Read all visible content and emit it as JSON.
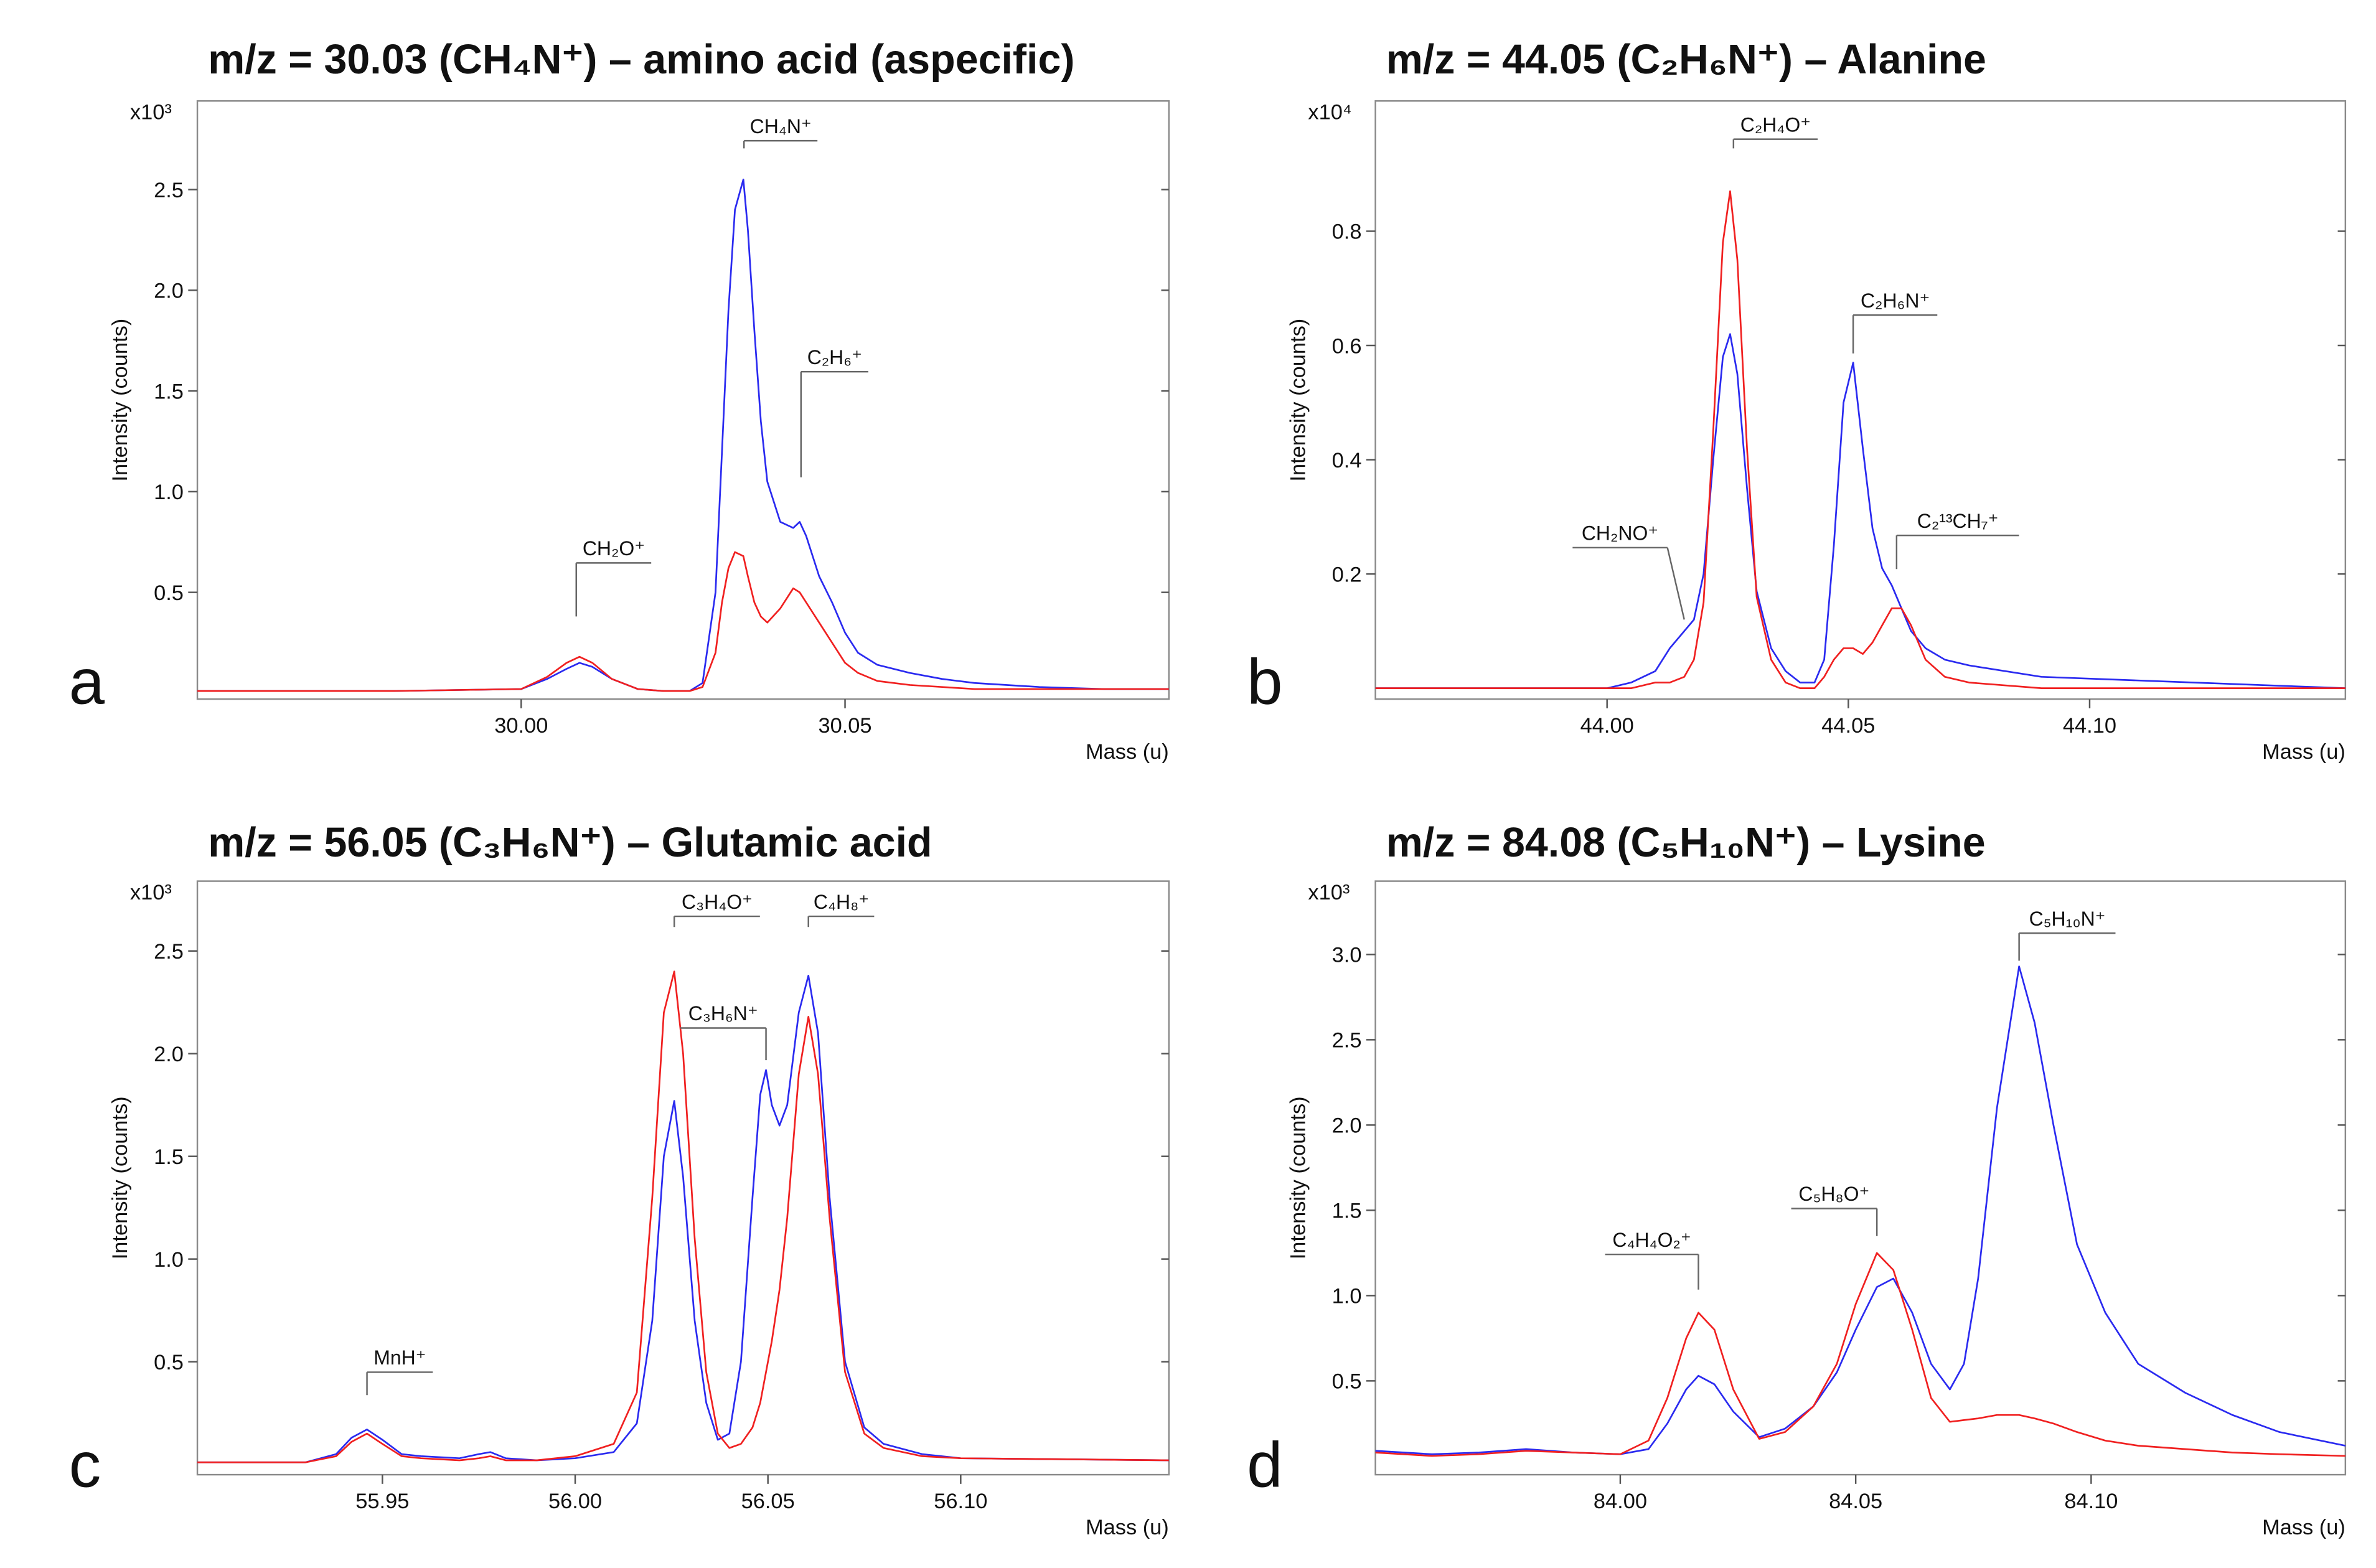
{
  "chart_data": [
    {
      "type": "line",
      "title": "m/z = 30.03 (CH₄N⁺) – amino acid (aspecific)",
      "panel_label": "a",
      "y_multiplier": "x10³",
      "xlabel": "Mass (u)",
      "ylabel": "Intensity (counts)",
      "xlim": [
        29.95,
        30.1
      ],
      "ylim": [
        -0.03,
        2.94
      ],
      "xticks": [
        {
          "value": 30,
          "label": "30.00"
        },
        30.05
      ],
      "yticks": [
        0.5,
        {
          "value": 1,
          "label": "1.0"
        },
        1.5,
        {
          "value": 2,
          "label": "2.0"
        },
        2.5
      ],
      "x": [
        29.95,
        29.98,
        30.0,
        30.004,
        30.007,
        30.009,
        30.011,
        30.014,
        30.018,
        30.022,
        30.026,
        30.028,
        30.03,
        30.031,
        30.032,
        30.033,
        30.0343,
        30.035,
        30.036,
        30.037,
        30.038,
        30.04,
        30.042,
        30.043,
        30.044,
        30.046,
        30.048,
        30.05,
        30.052,
        30.055,
        30.06,
        30.065,
        30.07,
        30.08,
        30.09,
        30.1
      ],
      "series": [
        {
          "color": "#2a2af0",
          "values": [
            0.01,
            0.01,
            0.02,
            0.07,
            0.12,
            0.15,
            0.13,
            0.07,
            0.02,
            0.01,
            0.01,
            0.05,
            0.5,
            1.2,
            1.9,
            2.4,
            2.55,
            2.3,
            1.8,
            1.35,
            1.05,
            0.85,
            0.82,
            0.85,
            0.78,
            0.58,
            0.45,
            0.3,
            0.2,
            0.14,
            0.1,
            0.07,
            0.05,
            0.03,
            0.02,
            0.02
          ]
        },
        {
          "color": "#f02020",
          "values": [
            0.01,
            0.01,
            0.02,
            0.08,
            0.15,
            0.18,
            0.15,
            0.07,
            0.02,
            0.01,
            0.01,
            0.03,
            0.2,
            0.45,
            0.62,
            0.7,
            0.68,
            0.58,
            0.45,
            0.38,
            0.35,
            0.42,
            0.52,
            0.5,
            0.45,
            0.35,
            0.25,
            0.15,
            0.1,
            0.06,
            0.04,
            0.03,
            0.02,
            0.02,
            0.02,
            0.02
          ]
        }
      ],
      "annotations": [
        {
          "label": "CH₂O⁺",
          "x": 30.0085
        },
        {
          "label": "CH₄N⁺",
          "x": 30.0344
        },
        {
          "label": "C₂H₆⁺",
          "x": 30.0432
        }
      ]
    },
    {
      "type": "line",
      "title": "m/z = 44.05 (C₂H₆N⁺) – Alanine",
      "panel_label": "b",
      "y_multiplier": "x10⁴",
      "xlabel": "Mass (u)",
      "ylabel": "Intensity (counts)",
      "xlim": [
        43.952,
        44.153
      ],
      "ylim": [
        -0.019,
        1.028
      ],
      "xticks": [
        {
          "value": 44,
          "label": "44.00"
        },
        44.05,
        {
          "value": 44.1,
          "label": "44.10"
        }
      ],
      "yticks": [
        0.2,
        0.4,
        0.6,
        0.8
      ],
      "x": [
        43.952,
        44.0,
        44.005,
        44.01,
        44.013,
        44.016,
        44.018,
        44.02,
        44.022,
        44.024,
        44.0255,
        44.027,
        44.029,
        44.031,
        44.034,
        44.037,
        44.04,
        44.043,
        44.045,
        44.047,
        44.049,
        44.051,
        44.053,
        44.055,
        44.057,
        44.059,
        44.061,
        44.063,
        44.066,
        44.07,
        44.075,
        44.09,
        44.153
      ],
      "series": [
        {
          "color": "#2a2af0",
          "values": [
            0,
            0,
            0.01,
            0.03,
            0.07,
            0.1,
            0.12,
            0.2,
            0.4,
            0.58,
            0.62,
            0.55,
            0.35,
            0.17,
            0.07,
            0.03,
            0.01,
            0.01,
            0.05,
            0.25,
            0.5,
            0.57,
            0.42,
            0.28,
            0.21,
            0.18,
            0.14,
            0.1,
            0.07,
            0.05,
            0.04,
            0.02,
            0
          ]
        },
        {
          "color": "#f02020",
          "values": [
            0,
            0,
            0,
            0.01,
            0.01,
            0.02,
            0.05,
            0.15,
            0.45,
            0.78,
            0.87,
            0.75,
            0.42,
            0.16,
            0.05,
            0.01,
            0,
            0,
            0.02,
            0.05,
            0.07,
            0.07,
            0.06,
            0.08,
            0.11,
            0.14,
            0.14,
            0.11,
            0.05,
            0.02,
            0.01,
            0,
            0
          ]
        }
      ],
      "annotations": [
        {
          "label": "CH₂NO⁺",
          "x": 44.016
        },
        {
          "label": "C₂H₄O⁺",
          "x": 44.0262
        },
        {
          "label": "C₂H₆N⁺",
          "x": 44.051
        },
        {
          "label": "C₂¹³CH₇⁺",
          "x": 44.06
        }
      ]
    },
    {
      "type": "line",
      "title": "m/z = 56.05 (C₃H₆N⁺) – Glutamic acid",
      "panel_label": "c",
      "y_multiplier": "x10³",
      "xlabel": "Mass (u)",
      "ylabel": "Intensity (counts)",
      "xlim": [
        55.902,
        56.154
      ],
      "ylim": [
        -0.05,
        2.84
      ],
      "xticks": [
        55.95,
        {
          "value": 56,
          "label": "56.00"
        },
        56.05,
        {
          "value": 56.1,
          "label": "56.10"
        }
      ],
      "yticks": [
        0.5,
        {
          "value": 1,
          "label": "1.0"
        },
        1.5,
        {
          "value": 2,
          "label": "2.0"
        },
        2.5
      ],
      "x": [
        55.902,
        55.93,
        55.938,
        55.942,
        55.946,
        55.95,
        55.955,
        55.96,
        55.97,
        55.975,
        55.978,
        55.982,
        55.99,
        56.0,
        56.01,
        56.016,
        56.02,
        56.023,
        56.0257,
        56.028,
        56.031,
        56.034,
        56.037,
        56.04,
        56.043,
        56.046,
        56.048,
        56.0495,
        56.051,
        56.053,
        56.055,
        56.058,
        56.0605,
        56.063,
        56.066,
        56.07,
        56.075,
        56.08,
        56.09,
        56.1,
        56.154
      ],
      "series": [
        {
          "color": "#2a2af0",
          "values": [
            0.01,
            0.01,
            0.05,
            0.13,
            0.17,
            0.12,
            0.05,
            0.04,
            0.03,
            0.05,
            0.06,
            0.03,
            0.02,
            0.03,
            0.06,
            0.2,
            0.7,
            1.5,
            1.77,
            1.4,
            0.7,
            0.3,
            0.12,
            0.15,
            0.5,
            1.3,
            1.8,
            1.92,
            1.75,
            1.65,
            1.75,
            2.2,
            2.38,
            2.1,
            1.3,
            0.5,
            0.18,
            0.1,
            0.05,
            0.03,
            0.02
          ]
        },
        {
          "color": "#f02020",
          "values": [
            0.01,
            0.01,
            0.04,
            0.11,
            0.15,
            0.1,
            0.04,
            0.03,
            0.02,
            0.03,
            0.04,
            0.02,
            0.02,
            0.04,
            0.1,
            0.35,
            1.3,
            2.2,
            2.4,
            2.0,
            1.1,
            0.45,
            0.15,
            0.08,
            0.1,
            0.18,
            0.3,
            0.45,
            0.6,
            0.85,
            1.2,
            1.9,
            2.18,
            1.9,
            1.2,
            0.45,
            0.15,
            0.08,
            0.04,
            0.03,
            0.02
          ]
        }
      ],
      "annotations": [
        {
          "label": "MnH⁺",
          "x": 55.946
        },
        {
          "label": "C₃H₄O⁺",
          "x": 56.0257
        },
        {
          "label": "C₃H₆N⁺",
          "x": 56.0495
        },
        {
          "label": "C₄H₈⁺",
          "x": 56.0605
        }
      ]
    },
    {
      "type": "line",
      "title": "m/z = 84.08 (C₅H₁₀N⁺) – Lysine",
      "panel_label": "d",
      "y_multiplier": "x10³",
      "xlabel": "Mass (u)",
      "ylabel": "Intensity (counts)",
      "xlim": [
        83.948,
        84.154
      ],
      "ylim": [
        -0.05,
        3.43
      ],
      "xticks": [
        {
          "value": 84,
          "label": "84.00"
        },
        84.05,
        {
          "value": 84.1,
          "label": "84.10"
        }
      ],
      "yticks": [
        0.5,
        {
          "value": 1,
          "label": "1.0"
        },
        1.5,
        {
          "value": 2,
          "label": "2.0"
        },
        2.5,
        {
          "value": 3,
          "label": "3.0"
        }
      ],
      "x": [
        83.948,
        83.96,
        83.97,
        83.98,
        83.99,
        84.0,
        84.006,
        84.01,
        84.014,
        84.0166,
        84.02,
        84.024,
        84.0295,
        84.035,
        84.041,
        84.046,
        84.05,
        84.0545,
        84.058,
        84.062,
        84.066,
        84.07,
        84.073,
        84.076,
        84.08,
        84.0847,
        84.088,
        84.092,
        84.097,
        84.103,
        84.11,
        84.12,
        84.13,
        84.14,
        84.154
      ],
      "series": [
        {
          "color": "#2a2af0",
          "values": [
            0.09,
            0.07,
            0.08,
            0.1,
            0.08,
            0.07,
            0.1,
            0.25,
            0.45,
            0.53,
            0.48,
            0.32,
            0.17,
            0.22,
            0.35,
            0.55,
            0.8,
            1.05,
            1.1,
            0.9,
            0.6,
            0.45,
            0.6,
            1.1,
            2.1,
            2.93,
            2.6,
            2.0,
            1.3,
            0.9,
            0.6,
            0.43,
            0.3,
            0.2,
            0.12
          ]
        },
        {
          "color": "#f02020",
          "values": [
            0.08,
            0.06,
            0.07,
            0.09,
            0.08,
            0.07,
            0.15,
            0.4,
            0.75,
            0.9,
            0.8,
            0.45,
            0.16,
            0.2,
            0.35,
            0.6,
            0.95,
            1.25,
            1.15,
            0.8,
            0.4,
            0.26,
            0.27,
            0.28,
            0.3,
            0.3,
            0.28,
            0.25,
            0.2,
            0.15,
            0.12,
            0.1,
            0.08,
            0.07,
            0.06
          ]
        }
      ],
      "annotations": [
        {
          "label": "C₄H₄O₂⁺",
          "x": 84.0166
        },
        {
          "label": "C₅H₈O⁺",
          "x": 84.0545
        },
        {
          "label": "C₅H₁₀N⁺",
          "x": 84.0847
        }
      ]
    }
  ]
}
